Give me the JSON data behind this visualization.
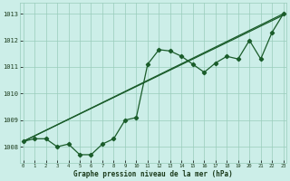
{
  "xlabel": "Graphe pression niveau de la mer (hPa)",
  "bg_color": "#cceee8",
  "grid_color": "#99ccbb",
  "line_color": "#1a5c2a",
  "x_values": [
    0,
    1,
    2,
    3,
    4,
    5,
    6,
    7,
    8,
    9,
    10,
    11,
    12,
    13,
    14,
    15,
    16,
    17,
    18,
    19,
    20,
    21,
    22,
    23
  ],
  "y_main": [
    1008.2,
    1008.3,
    1008.3,
    1008.0,
    1008.1,
    1007.7,
    1007.7,
    1008.1,
    1008.3,
    1009.0,
    1009.1,
    1011.1,
    1011.65,
    1011.6,
    1011.4,
    1011.1,
    1010.8,
    1011.15,
    1011.4,
    1011.3,
    1012.0,
    1011.3,
    1012.3,
    1013.0
  ],
  "ylim": [
    1007.4,
    1013.4
  ],
  "yticks": [
    1008,
    1009,
    1010,
    1011,
    1012,
    1013
  ],
  "xlim": [
    -0.3,
    23.3
  ]
}
